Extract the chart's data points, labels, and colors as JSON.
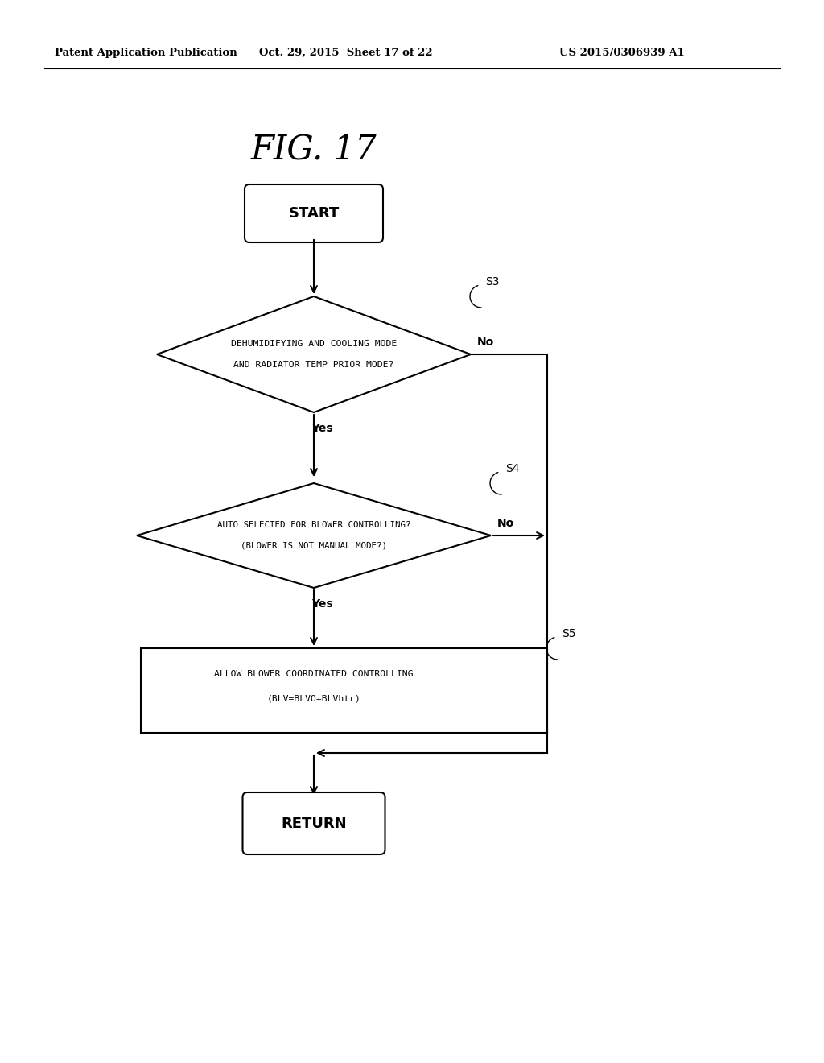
{
  "title": "FIG. 17",
  "header_left": "Patent Application Publication",
  "header_center": "Oct. 29, 2015  Sheet 17 of 22",
  "header_right": "US 2015/0306939 A1",
  "bg_color": "#ffffff",
  "line_color": "#000000",
  "start_text": "START",
  "return_text": "RETURN",
  "diamond1_line1": "DEHUMIDIFYING AND COOLING MODE",
  "diamond1_line2": "AND RADIATOR TEMP PRIOR MODE?",
  "diamond1_label": "S3",
  "diamond1_yes": "Yes",
  "diamond1_no": "No",
  "diamond2_line1": "AUTO SELECTED FOR BLOWER CONTROLLING?",
  "diamond2_line2": "(BLOWER IS NOT MANUAL MODE?)",
  "diamond2_label": "S4",
  "diamond2_yes": "Yes",
  "diamond2_no": "No",
  "rect_line1": "ALLOW BLOWER COORDINATED CONTROLLING",
  "rect_line2": "(BLV=BLVO+BLVhtr)",
  "rect_label": "S5"
}
